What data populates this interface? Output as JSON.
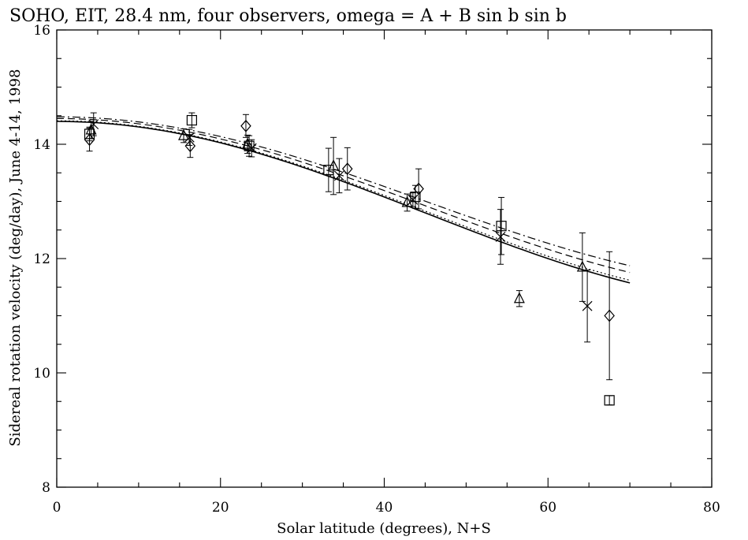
{
  "chart_data": {
    "type": "scatter",
    "title": "SOHO, EIT, 28.4 nm, four observers, omega = A + B sin b sin b",
    "xlabel": "Solar latitude (degrees), N+S",
    "ylabel": "Sidereal rotation velocity (deg/day), June 4-14, 1998",
    "xlim": [
      0,
      80
    ],
    "ylim": [
      8,
      16
    ],
    "xticks": [
      "0",
      "20",
      "40",
      "60",
      "80"
    ],
    "yticks": [
      "8",
      "10",
      "12",
      "14",
      "16"
    ],
    "grid": false,
    "series": [
      {
        "symbol": "square",
        "points": [
          {
            "x": 4.0,
            "y": 14.18,
            "err": 0.12
          },
          {
            "x": 16.5,
            "y": 14.42,
            "err": 0.13
          },
          {
            "x": 23.5,
            "y": 13.97,
            "err": 0.18
          },
          {
            "x": 33.2,
            "y": 13.55,
            "err": 0.38
          },
          {
            "x": 43.8,
            "y": 13.08,
            "err": 0.2
          },
          {
            "x": 54.3,
            "y": 12.57,
            "err": 0.5
          },
          {
            "x": 67.5,
            "y": 9.52,
            "err": 0.08
          }
        ]
      },
      {
        "symbol": "cross",
        "points": [
          {
            "x": 4.5,
            "y": 14.35,
            "err": 0.2
          },
          {
            "x": 16.2,
            "y": 14.12,
            "err": 0.14
          },
          {
            "x": 23.8,
            "y": 13.93,
            "err": 0.15
          },
          {
            "x": 34.5,
            "y": 13.45,
            "err": 0.3
          },
          {
            "x": 43.5,
            "y": 13.03,
            "err": 0.12
          },
          {
            "x": 54.2,
            "y": 12.38,
            "err": 0.48
          },
          {
            "x": 64.8,
            "y": 11.17,
            "err": 0.63
          }
        ]
      },
      {
        "symbol": "triangle",
        "points": [
          {
            "x": 4.2,
            "y": 14.25,
            "err": 0.15
          },
          {
            "x": 15.5,
            "y": 14.15,
            "err": 0.12
          },
          {
            "x": 23.3,
            "y": 14.0,
            "err": 0.16
          },
          {
            "x": 33.8,
            "y": 13.62,
            "err": 0.5
          },
          {
            "x": 42.8,
            "y": 12.98,
            "err": 0.15
          },
          {
            "x": 56.5,
            "y": 11.3,
            "err": 0.14
          },
          {
            "x": 64.2,
            "y": 11.85,
            "err": 0.6
          }
        ]
      },
      {
        "symbol": "diamond",
        "points": [
          {
            "x": 4.0,
            "y": 14.08,
            "err": 0.2
          },
          {
            "x": 16.3,
            "y": 13.97,
            "err": 0.2
          },
          {
            "x": 23.1,
            "y": 14.32,
            "err": 0.2
          },
          {
            "x": 35.5,
            "y": 13.57,
            "err": 0.37
          },
          {
            "x": 44.2,
            "y": 13.22,
            "err": 0.35
          },
          {
            "x": 67.5,
            "y": 11.0,
            "err": 1.12
          }
        ]
      }
    ],
    "fits": [
      {
        "style": "solid",
        "A": 14.4,
        "B": -3.2
      },
      {
        "style": "dotted",
        "A": 14.41,
        "B": -3.16
      },
      {
        "style": "dashed",
        "A": 14.45,
        "B": -3.05
      },
      {
        "style": "dashdot",
        "A": 14.48,
        "B": -2.95
      }
    ]
  }
}
